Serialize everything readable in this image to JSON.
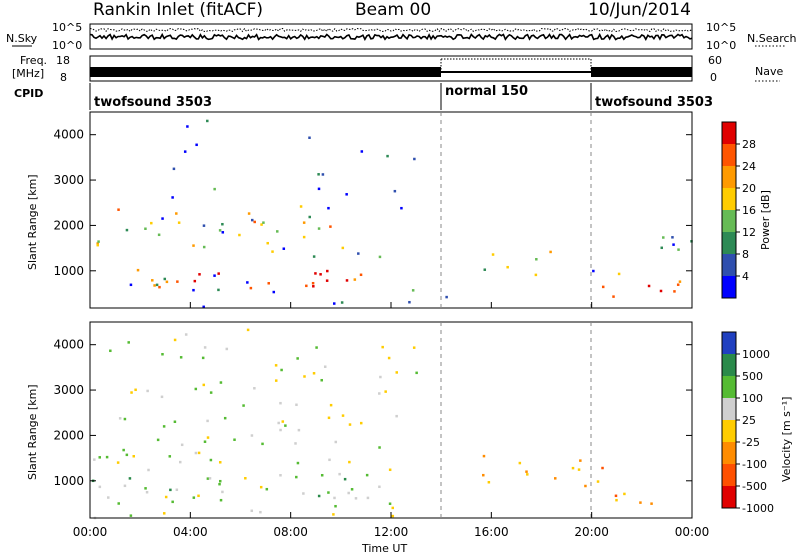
{
  "header": {
    "station": "Rankin Inlet (fitACF)",
    "beam": "Beam 00",
    "date": "10/Jun/2014"
  },
  "top_panels": {
    "nsky_label": "N.Sky",
    "nsky_ticks": [
      "10^5",
      "10^0"
    ],
    "nsearch_label": "N.Search",
    "nsearch_ticks": [
      "10^5",
      "10^0"
    ],
    "freq_label": "Freq.",
    "freq_unit": "[MHz]",
    "freq_ticks": [
      "18",
      "8"
    ],
    "nave_label": "Nave",
    "nave_ticks": [
      "60",
      "0"
    ],
    "cpid_label": "CPID",
    "cpid_segments": [
      {
        "label": "twofsound 3503",
        "start_hour": 0,
        "end_hour": 14
      },
      {
        "label": "normal 150",
        "start_hour": 14,
        "end_hour": 20
      },
      {
        "label": "twofsound 3503",
        "start_hour": 20,
        "end_hour": 24
      }
    ]
  },
  "chart_data": [
    {
      "type": "heatmap",
      "name": "power",
      "ylabel": "Slant Range [km]",
      "ylim": [
        180,
        4500
      ],
      "y_ticks": [
        1000,
        2000,
        3000,
        4000
      ],
      "xlim": [
        0,
        24
      ],
      "colorbar": {
        "label": "Power [dB]",
        "ticks": [
          "28",
          "24",
          "20",
          "16",
          "12",
          "8",
          "4"
        ],
        "colors": [
          "#e00000",
          "#ff5500",
          "#ff9a00",
          "#ffcc00",
          "#66bb55",
          "#2d8a55",
          "#2f4fae",
          "#0000ff"
        ]
      },
      "scatter_regions": [
        {
          "t0": 0.0,
          "t1": 10.8,
          "r0": 600,
          "r1": 1100,
          "level": 0.85
        },
        {
          "t0": 0.2,
          "t1": 10.5,
          "r0": 1300,
          "r1": 2450,
          "level": 0.55
        },
        {
          "t0": 3.8,
          "t1": 5.2,
          "r0": 2700,
          "r1": 3100,
          "level": 0.45
        },
        {
          "t0": 0.0,
          "t1": 13.0,
          "r0": 200,
          "r1": 4400,
          "level": 0.15
        },
        {
          "t0": 15.5,
          "t1": 20.0,
          "r0": 900,
          "r1": 1500,
          "level": 0.5
        },
        {
          "t0": 20.0,
          "t1": 23.5,
          "r0": 350,
          "r1": 900,
          "level": 0.85
        },
        {
          "t0": 20.0,
          "t1": 24.0,
          "r0": 900,
          "r1": 2100,
          "level": 0.35
        },
        {
          "t0": 12.5,
          "t1": 15.0,
          "r0": 200,
          "r1": 700,
          "level": 0.35
        }
      ]
    },
    {
      "type": "heatmap",
      "name": "velocity",
      "ylabel": "Slant Range [km]",
      "xlabel": "Time UT",
      "ylim": [
        180,
        4500
      ],
      "y_ticks": [
        1000,
        2000,
        3000,
        4000
      ],
      "xlim": [
        0,
        24
      ],
      "x_ticks": [
        "00:00",
        "04:00",
        "08:00",
        "12:00",
        "16:00",
        "20:00",
        "00:00"
      ],
      "colorbar": {
        "label": "Velocity [m s⁻¹]",
        "ticks": [
          "1000",
          "500",
          "100",
          "25",
          "-25",
          "-100",
          "-500",
          "-1000"
        ],
        "colors": [
          "#2040c0",
          "#2a8a4a",
          "#55bb33",
          "#cfcfcf",
          "#ffcc00",
          "#ff8c00",
          "#ff5000",
          "#e00000"
        ]
      },
      "scatter_regions": [
        {
          "t0": 0.5,
          "t1": 10.5,
          "r0": 1400,
          "r1": 2500,
          "level": 0.45
        },
        {
          "t0": 0.0,
          "t1": 10.8,
          "r0": 500,
          "r1": 1200,
          "level": 0.7
        },
        {
          "t0": 15.5,
          "t1": 20.5,
          "r0": 900,
          "r1": 1600,
          "level": 0.8
        },
        {
          "t0": 20.0,
          "t1": 23.0,
          "r0": 300,
          "r1": 800,
          "level": 0.8
        },
        {
          "t0": 0.0,
          "t1": 13.0,
          "r0": 200,
          "r1": 4400,
          "level": 0.35
        }
      ]
    }
  ]
}
